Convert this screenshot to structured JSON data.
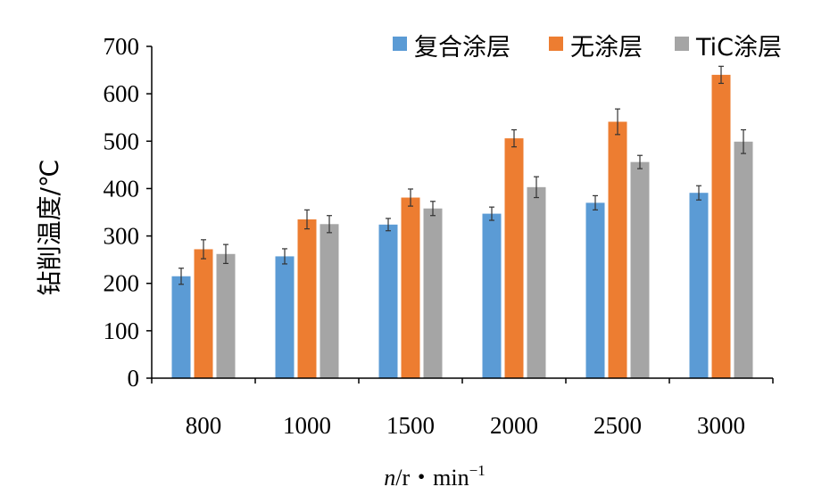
{
  "chart_data": {
    "type": "bar",
    "ylabel": "钻削温度/℃",
    "xlabel_italic": "n",
    "xlabel_unit": "/r・min",
    "xlabel_sup": "−1",
    "categories": [
      "800",
      "1000",
      "1500",
      "2000",
      "2500",
      "3000"
    ],
    "ylim": [
      0,
      700
    ],
    "yticks": [
      "0",
      "100",
      "200",
      "300",
      "400",
      "500",
      "600",
      "700"
    ],
    "grid": false,
    "legend_position": "top-right",
    "series": [
      {
        "name": "复合涂层",
        "color": "#5B9BD5",
        "values": [
          215,
          257,
          324,
          347,
          370,
          391
        ],
        "errors": [
          17,
          16,
          13,
          14,
          15,
          15
        ]
      },
      {
        "name": "无涂层",
        "color": "#ED7D31",
        "values": [
          272,
          335,
          381,
          506,
          541,
          640
        ],
        "errors": [
          20,
          20,
          18,
          18,
          27,
          18
        ]
      },
      {
        "name": "TiC涂层",
        "color": "#A5A5A5",
        "values": [
          262,
          325,
          358,
          403,
          456,
          499
        ],
        "errors": [
          20,
          18,
          15,
          22,
          14,
          25
        ]
      }
    ]
  }
}
